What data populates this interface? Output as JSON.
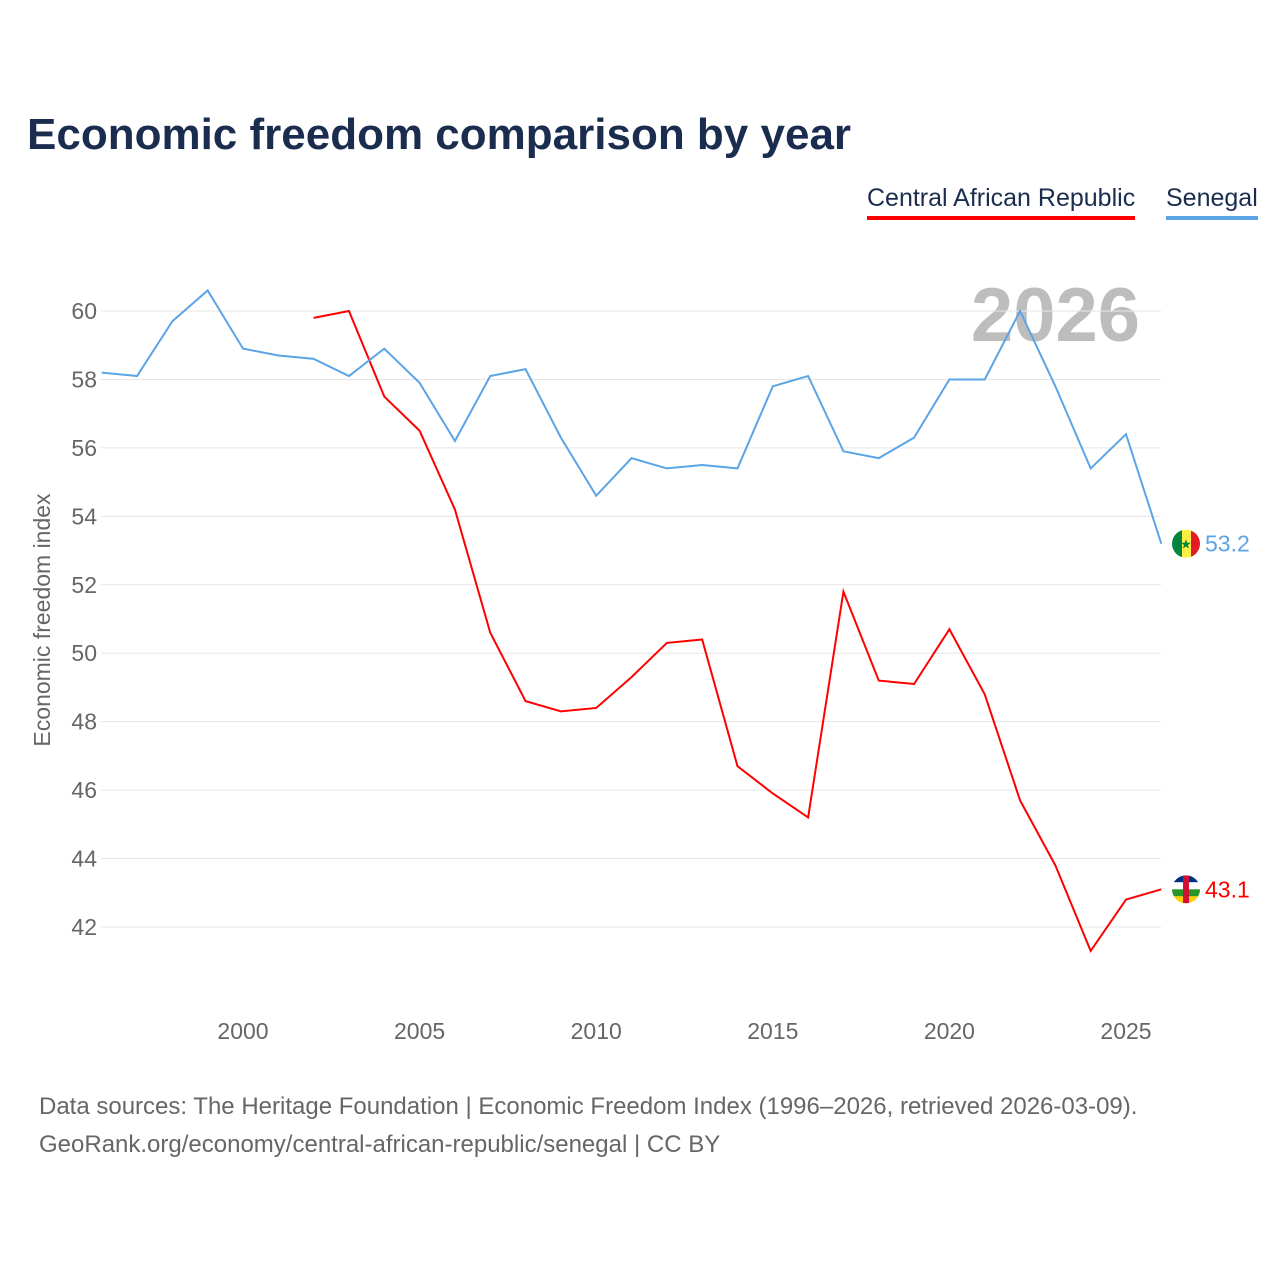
{
  "chart_data": {
    "type": "line",
    "title": "Economic freedom comparison by year",
    "xlabel": "",
    "ylabel": "Economic freedom index",
    "watermark_year": "2026",
    "xlim": [
      1996,
      2026
    ],
    "ylim": [
      40,
      61
    ],
    "yticks": [
      42,
      44,
      46,
      48,
      50,
      52,
      54,
      56,
      58,
      60
    ],
    "xticks": [
      2000,
      2005,
      2010,
      2015,
      2020,
      2025
    ],
    "grid": true,
    "legend_position": "top-right",
    "series": [
      {
        "name": "Central African Republic",
        "color": "#ff0000",
        "end_label": "43.1",
        "x": [
          2002,
          2003,
          2004,
          2005,
          2006,
          2007,
          2008,
          2009,
          2010,
          2011,
          2012,
          2013,
          2014,
          2015,
          2016,
          2017,
          2018,
          2019,
          2020,
          2021,
          2022,
          2023,
          2024,
          2025,
          2026
        ],
        "values": [
          59.8,
          60.0,
          57.5,
          56.5,
          54.2,
          50.6,
          48.6,
          48.3,
          48.4,
          49.3,
          50.3,
          50.4,
          46.7,
          45.9,
          45.2,
          51.8,
          49.2,
          49.1,
          50.7,
          48.8,
          45.7,
          43.8,
          41.3,
          42.8,
          43.1
        ]
      },
      {
        "name": "Senegal",
        "color": "#5ba4e6",
        "end_label": "53.2",
        "x": [
          1996,
          1997,
          1998,
          1999,
          2000,
          2001,
          2002,
          2003,
          2004,
          2005,
          2006,
          2007,
          2008,
          2009,
          2010,
          2011,
          2012,
          2013,
          2014,
          2015,
          2016,
          2017,
          2018,
          2019,
          2020,
          2021,
          2022,
          2023,
          2024,
          2025,
          2026
        ],
        "values": [
          58.2,
          58.1,
          59.7,
          60.6,
          58.9,
          58.7,
          58.6,
          58.1,
          58.9,
          57.9,
          56.2,
          58.1,
          58.3,
          56.3,
          54.6,
          55.7,
          55.4,
          55.5,
          55.4,
          57.8,
          58.1,
          55.9,
          55.7,
          56.3,
          58.0,
          58.0,
          60.0,
          57.8,
          55.4,
          56.4,
          53.2
        ]
      }
    ]
  },
  "footer": {
    "line1": "Data sources: The Heritage Foundation | Economic Freedom Index (1996–2026, retrieved 2026-03-09).",
    "line2": "GeoRank.org/economy/central-african-republic/senegal | CC BY"
  }
}
